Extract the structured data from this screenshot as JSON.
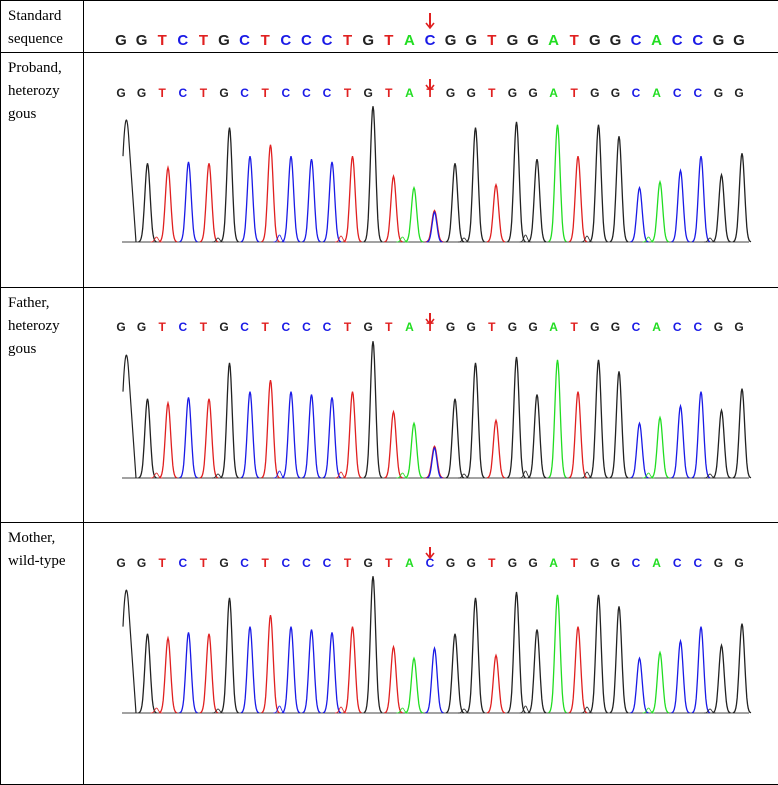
{
  "colors": {
    "A": "#22dd22",
    "C": "#1a1ae6",
    "G": "#222222",
    "T": "#e02020",
    "arrow": "#e02020",
    "border": "#000000"
  },
  "rows": [
    {
      "label": "Standard\nsequence",
      "sequence": [
        "G",
        "G",
        "T",
        "C",
        "T",
        "G",
        "C",
        "T",
        "C",
        "C",
        "C",
        "T",
        "G",
        "T",
        "A",
        "C",
        "G",
        "G",
        "T",
        "G",
        "G",
        "A",
        "T",
        "G",
        "G",
        "C",
        "A",
        "C",
        "C",
        "G",
        "G"
      ],
      "arrow_index": 15,
      "chromatogram": false
    },
    {
      "label": "Proband,\nheterozy\ngous",
      "sequence": [
        "G",
        "G",
        "T",
        "C",
        "T",
        "G",
        "C",
        "T",
        "C",
        "C",
        "C",
        "T",
        "G",
        "T",
        "A",
        "T",
        "G",
        "G",
        "T",
        "G",
        "G",
        "A",
        "T",
        "G",
        "G",
        "C",
        "A",
        "C",
        "C",
        "G",
        "G"
      ],
      "arrow_index": 15,
      "chromatogram": true,
      "variant": "heterozygous"
    },
    {
      "label": "Father,\nheterozy\ngous",
      "sequence": [
        "G",
        "G",
        "T",
        "C",
        "T",
        "G",
        "C",
        "T",
        "C",
        "C",
        "C",
        "T",
        "G",
        "T",
        "A",
        "T",
        "G",
        "G",
        "T",
        "G",
        "G",
        "A",
        "T",
        "G",
        "G",
        "C",
        "A",
        "C",
        "C",
        "G",
        "G"
      ],
      "arrow_index": 15,
      "chromatogram": true,
      "variant": "heterozygous"
    },
    {
      "label": "Mother,\nwild-type",
      "sequence": [
        "G",
        "G",
        "T",
        "C",
        "T",
        "G",
        "C",
        "T",
        "C",
        "C",
        "C",
        "T",
        "G",
        "T",
        "A",
        "C",
        "G",
        "G",
        "T",
        "G",
        "G",
        "A",
        "T",
        "G",
        "G",
        "C",
        "A",
        "C",
        "C",
        "G",
        "G"
      ],
      "arrow_index": 15,
      "chromatogram": true,
      "variant": "wild-type"
    }
  ],
  "peak_levels": [
    0.92,
    0.55,
    0.52,
    0.56,
    0.55,
    0.8,
    0.6,
    0.68,
    0.6,
    0.58,
    0.56,
    0.6,
    0.95,
    0.46,
    0.38,
    0.22,
    0.55,
    0.8,
    0.4,
    0.84,
    0.58,
    0.82,
    0.6,
    0.82,
    0.74,
    0.38,
    0.42,
    0.5,
    0.6,
    0.47,
    0.62
  ]
}
